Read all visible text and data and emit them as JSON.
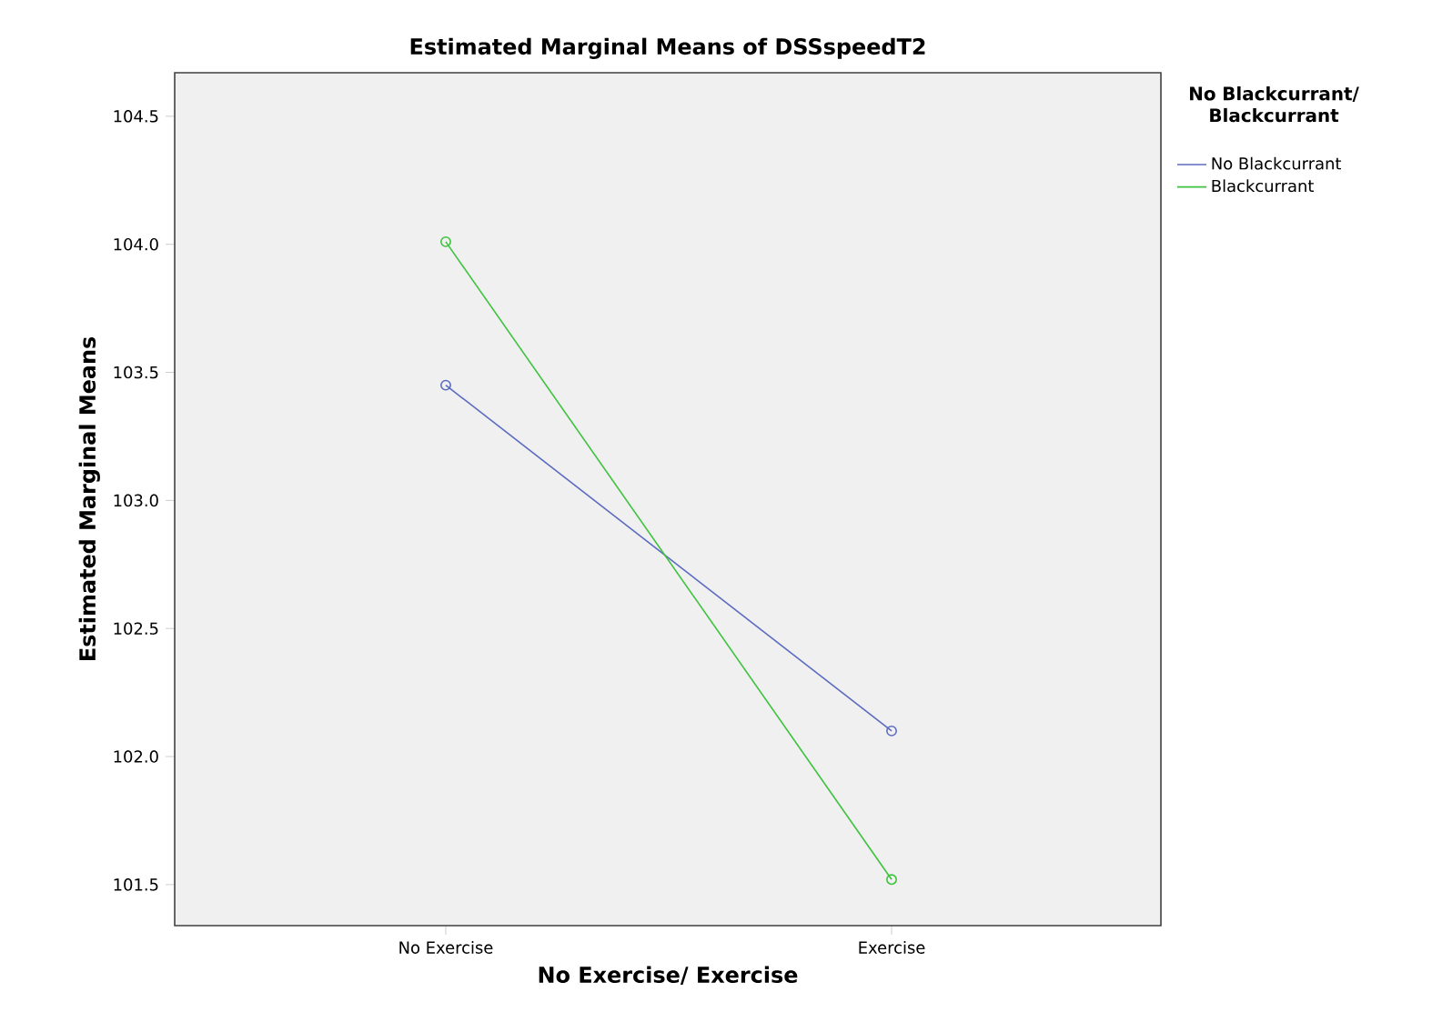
{
  "chart_data": {
    "type": "line",
    "title": "Estimated Marginal Means of DSSspeedT2",
    "xlabel": "No Exercise/ Exercise",
    "ylabel": "Estimated Marginal Means",
    "legend_title": "No Blackcurrant/ Blackcurrant",
    "categories": [
      "No Exercise",
      "Exercise"
    ],
    "series": [
      {
        "name": "No Blackcurrant",
        "color": "#5b6bbf",
        "values": [
          103.45,
          102.1
        ]
      },
      {
        "name": "Blackcurrant",
        "color": "#3ec23e",
        "values": [
          104.01,
          101.52
        ]
      }
    ],
    "ylim": [
      101.34,
      104.67
    ],
    "yticks": [
      {
        "value": 101.5,
        "label": "101.5"
      },
      {
        "value": 102,
        "label": "102.0"
      },
      {
        "value": 102.5,
        "label": "102.5"
      },
      {
        "value": 103,
        "label": "103.0"
      },
      {
        "value": 103.5,
        "label": "103.5"
      },
      {
        "value": 104,
        "label": "104.0"
      },
      {
        "value": 104.5,
        "label": "104.5"
      }
    ],
    "marker": "circle",
    "legend": "right",
    "grid": false
  }
}
